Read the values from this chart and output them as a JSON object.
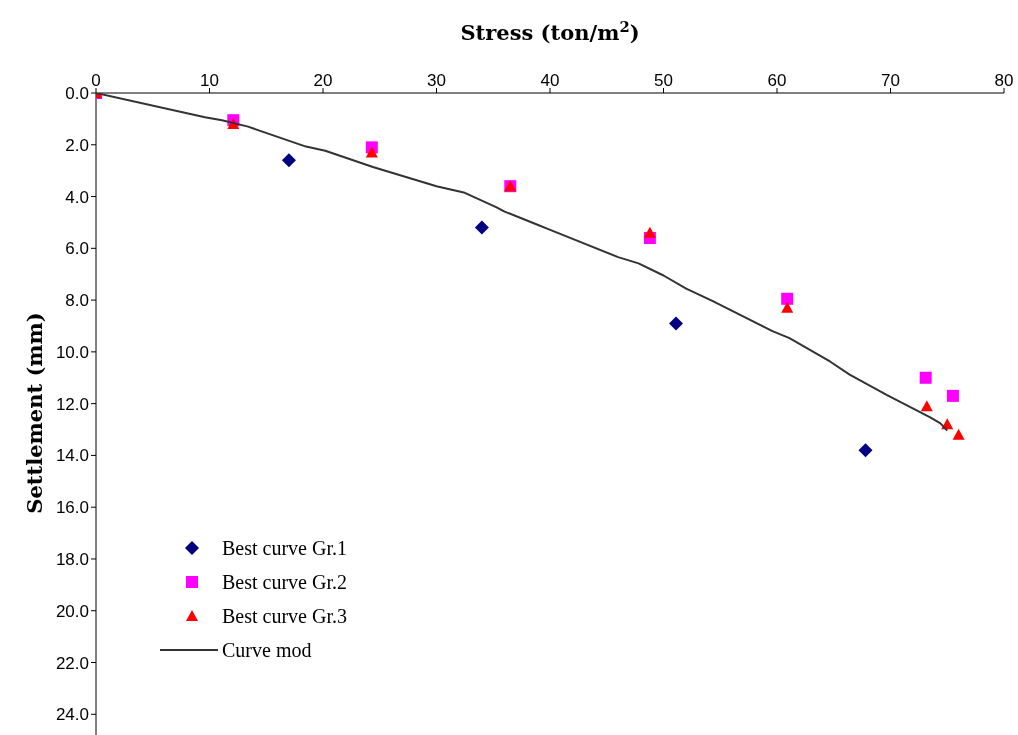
{
  "chart_data": {
    "type": "scatter",
    "xlabel": "Stress (ton/m$^{2}$)",
    "ylabel": "Settlement (mm)",
    "xlim": [
      0,
      80
    ],
    "xticks": [
      0,
      10,
      20,
      30,
      40,
      50,
      60,
      70,
      80
    ],
    "ylim": [
      24.8,
      0
    ],
    "yticks": [
      {
        "value": 0,
        "label": "0.0"
      },
      {
        "value": 2,
        "label": "2.0"
      },
      {
        "value": 4,
        "label": "4.0"
      },
      {
        "value": 6,
        "label": "6.0"
      },
      {
        "value": 8,
        "label": "8.0"
      },
      {
        "value": 10,
        "label": "10.0"
      },
      {
        "value": 12,
        "label": "12.0"
      },
      {
        "value": 14,
        "label": "14.0"
      },
      {
        "value": 16,
        "label": "16.0"
      },
      {
        "value": 18,
        "label": "18.0"
      },
      {
        "value": 20,
        "label": "20.0"
      },
      {
        "value": 22,
        "label": "22.0"
      },
      {
        "value": 24,
        "label": "24.0"
      }
    ],
    "grid": false,
    "legend": "bottom left",
    "series": [
      {
        "name": "Best curve Gr.1",
        "marker": "diamond",
        "color": "#000080",
        "x": [
          17.0,
          34.0,
          51.1,
          67.8
        ],
        "values": [
          2.6,
          5.2,
          8.9,
          13.8
        ]
      },
      {
        "name": "Best curve Gr.2",
        "marker": "square",
        "color": "#ff00ff",
        "x": [
          0,
          12.1,
          24.3,
          36.5,
          48.8,
          60.9,
          73.1,
          75.5
        ],
        "values": [
          0,
          1.05,
          2.1,
          3.6,
          5.6,
          7.95,
          11.0,
          11.7
        ]
      },
      {
        "name": "Best curve Gr.3",
        "marker": "triangle",
        "color": "#ff0000",
        "x": [
          0,
          12.1,
          24.3,
          36.5,
          48.8,
          60.9,
          73.2,
          75.0,
          76.0
        ],
        "values": [
          0,
          1.2,
          2.3,
          3.6,
          5.4,
          8.3,
          12.1,
          12.8,
          13.2
        ]
      },
      {
        "name": "Curve mod",
        "type": "line",
        "marker": "none",
        "line_style": "solid",
        "color": "#333333",
        "x": [
          0,
          9.6,
          11.1,
          13.4,
          18.5,
          20.2,
          24.4,
          30.0,
          32.4,
          35.3,
          36.0,
          38.9,
          39.8,
          46.0,
          47.8,
          50.0,
          52.0,
          54.3,
          59.6,
          61.1,
          64.7,
          66.4,
          69.7,
          73.5,
          74.4,
          75.0
        ],
        "values": [
          0,
          0.94,
          1.05,
          1.3,
          2.07,
          2.23,
          2.86,
          3.6,
          3.84,
          4.42,
          4.58,
          5.09,
          5.25,
          6.34,
          6.58,
          7.05,
          7.56,
          8.03,
          9.2,
          9.47,
          10.38,
          10.88,
          11.67,
          12.53,
          12.76,
          13.04
        ]
      }
    ]
  }
}
